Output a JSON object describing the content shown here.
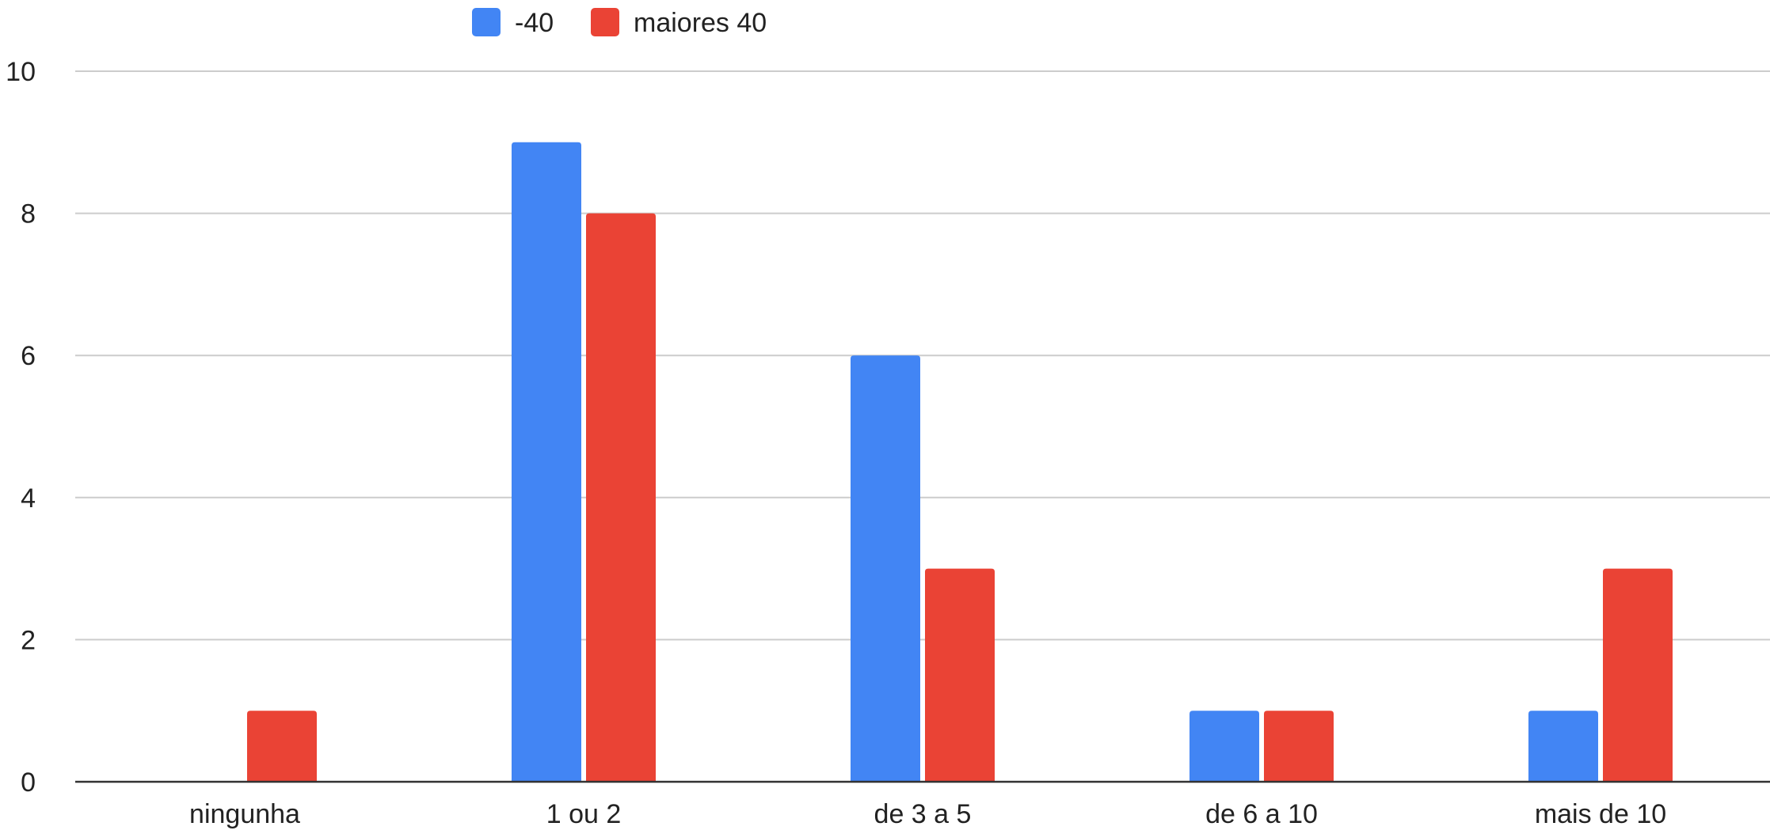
{
  "chart_data": {
    "type": "bar",
    "title": "",
    "xlabel": "",
    "ylabel": "",
    "categories": [
      "ningunha",
      "1 ou 2",
      "de 3 a 5",
      "de 6 a 10",
      "mais de 10"
    ],
    "series": [
      {
        "name": "-40",
        "values": [
          0,
          9,
          6,
          1,
          1
        ],
        "color": "#4285f4"
      },
      {
        "name": "maiores 40",
        "values": [
          1,
          8,
          3,
          1,
          3
        ],
        "color": "#ea4335"
      }
    ],
    "ylim": [
      0,
      10
    ],
    "yticks": [
      "0",
      "2",
      "4",
      "6",
      "8",
      "10"
    ],
    "grid": true,
    "legend_position": "top-center"
  }
}
